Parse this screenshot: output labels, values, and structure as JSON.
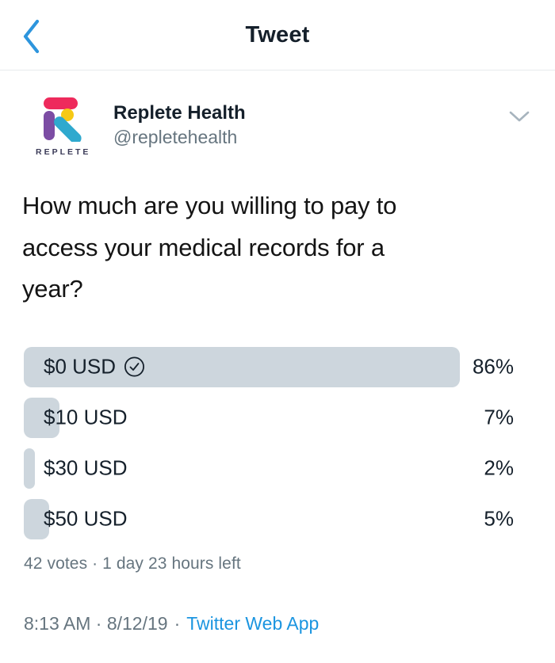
{
  "colors": {
    "accent_blue": "#1b95e0",
    "back_chevron_blue": "#2d95dd",
    "poll_bar_fill": "#cdd6dd",
    "muted_gray": "#66757f",
    "caret_gray": "#a7b4be",
    "divider": "#e8ebed",
    "logo_pink": "#ee2a5c",
    "logo_purple": "#7c4da4",
    "logo_yellow": "#f6c915",
    "logo_teal": "#2fa9ce"
  },
  "header": {
    "title": "Tweet"
  },
  "tweet": {
    "author": {
      "name": "Replete Health",
      "handle": "@repletehealth",
      "logo_caption": "REPLETE"
    },
    "text_lines": [
      "How much are you willing to pay to",
      "access your medical records for a",
      "year?"
    ],
    "poll": {
      "options": [
        {
          "label": "$0 USD",
          "percent": "86%",
          "voted": true
        },
        {
          "label": "$10 USD",
          "percent": "7%",
          "voted": false
        },
        {
          "label": "$30 USD",
          "percent": "2%",
          "voted": false
        },
        {
          "label": "$50 USD",
          "percent": "5%",
          "voted": false
        }
      ],
      "meta": "42 votes · 1 day 23 hours left"
    },
    "timestamp": "8:13 AM · 8/12/19",
    "separator": "·",
    "source": "Twitter Web App"
  }
}
